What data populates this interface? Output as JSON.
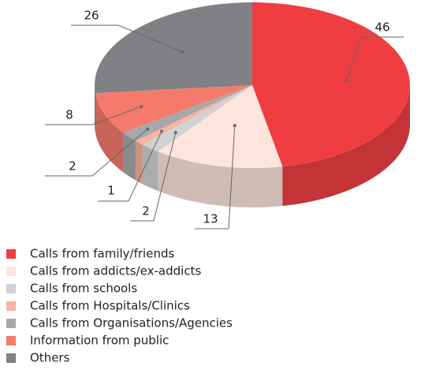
{
  "chart_data": {
    "type": "pie",
    "categories": [
      "Calls from family/friends",
      "Calls from addicts/ex-addicts",
      "Calls from schools",
      "Calls from Hospitals/Clinics",
      "Calls from Organisations/Agencies",
      "Information from public",
      "Others"
    ],
    "values": [
      46,
      13,
      2,
      1,
      2,
      8,
      26
    ],
    "colors": [
      "#ef3e42",
      "#fde5dc",
      "#d1d2d4",
      "#f9b3a0",
      "#a7a8ab",
      "#f47b6b",
      "#808185"
    ],
    "legend": "bottom-left"
  }
}
